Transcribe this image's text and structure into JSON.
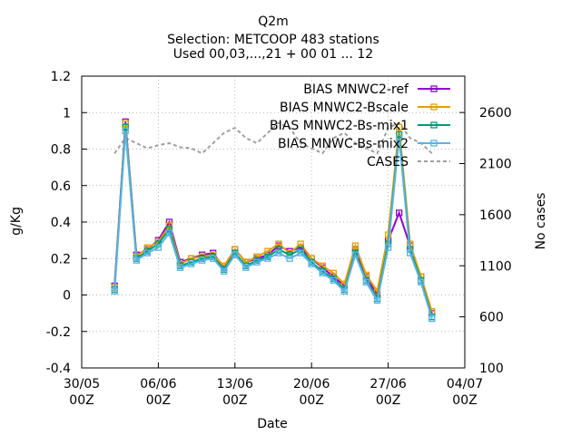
{
  "chart_data": {
    "type": "line",
    "title": "Q2m",
    "subtitle_lines": [
      "Selection: METCOOP    483 stations",
      "Used 00,03,...,21 + 00 01 ... 12"
    ],
    "xlabel": "Date",
    "ylabel": "g/Kg",
    "y2label": "No cases",
    "xlim": [
      "30/05",
      "04/07"
    ],
    "x_ticks": [
      "30/05\n00Z",
      "06/06\n00Z",
      "13/06\n00Z",
      "20/06\n00Z",
      "27/06\n00Z",
      "04/07\n00Z"
    ],
    "ylim": [
      -0.4,
      1.2
    ],
    "y_ticks": [
      "-0.4",
      "-0.2",
      "0",
      "0.2",
      "0.4",
      "0.6",
      "0.8",
      "1",
      "1.2"
    ],
    "y2lim": [
      100,
      2956
    ],
    "y2_ticks": [
      "100",
      "600",
      "1100",
      "1600",
      "2100",
      "2600"
    ],
    "grid": true,
    "legend_position": "top-right",
    "series": [
      {
        "name": "BIAS MNWC2-ref",
        "kind": "bias",
        "color": "#9400d3",
        "x": [
          0.0,
          1.0,
          2.0,
          3.0,
          4.0,
          5.0,
          6.0,
          7.0,
          8.0,
          9.0,
          10.0,
          11.0,
          12.0,
          13.0,
          14.0,
          15.0,
          16.0,
          17.0,
          18.0,
          19.0,
          20.0,
          21.0,
          22.0,
          23.0,
          24.0,
          25.0,
          26.0,
          27.0,
          28.0,
          29.0
        ],
        "y": [
          0.05,
          0.95,
          0.22,
          0.25,
          0.3,
          0.4,
          0.18,
          0.2,
          0.22,
          0.23,
          0.15,
          0.25,
          0.18,
          0.2,
          0.22,
          0.27,
          0.24,
          0.26,
          0.2,
          0.15,
          0.1,
          0.05,
          0.25,
          0.1,
          0.0,
          0.3,
          0.45,
          0.27,
          0.1,
          -0.1
        ]
      },
      {
        "name": "BIAS MNWC2-Bscale",
        "kind": "bias",
        "color": "#e69f00",
        "x": [
          0.0,
          1.0,
          2.0,
          3.0,
          4.0,
          5.0,
          6.0,
          7.0,
          8.0,
          9.0,
          10.0,
          11.0,
          12.0,
          13.0,
          14.0,
          15.0,
          16.0,
          17.0,
          18.0,
          19.0,
          20.0,
          21.0,
          22.0,
          23.0,
          24.0,
          25.0,
          26.0,
          27.0,
          28.0,
          29.0
        ],
        "y": [
          0.04,
          0.94,
          0.21,
          0.26,
          0.29,
          0.38,
          0.17,
          0.2,
          0.21,
          0.22,
          0.16,
          0.25,
          0.18,
          0.21,
          0.24,
          0.28,
          0.23,
          0.28,
          0.2,
          0.16,
          0.12,
          0.06,
          0.27,
          0.11,
          0.02,
          0.33,
          0.92,
          0.28,
          0.1,
          -0.09
        ]
      },
      {
        "name": "BIAS MNWC2-Bs-mix1",
        "kind": "bias",
        "color": "#009e73",
        "x": [
          0.0,
          1.0,
          2.0,
          3.0,
          4.0,
          5.0,
          6.0,
          7.0,
          8.0,
          9.0,
          10.0,
          11.0,
          12.0,
          13.0,
          14.0,
          15.0,
          16.0,
          17.0,
          18.0,
          19.0,
          20.0,
          21.0,
          22.0,
          23.0,
          24.0,
          25.0,
          26.0,
          27.0,
          28.0,
          29.0
        ],
        "y": [
          0.03,
          0.92,
          0.2,
          0.24,
          0.28,
          0.36,
          0.16,
          0.18,
          0.2,
          0.21,
          0.14,
          0.23,
          0.16,
          0.19,
          0.21,
          0.25,
          0.22,
          0.25,
          0.18,
          0.13,
          0.09,
          0.03,
          0.23,
          0.08,
          -0.02,
          0.28,
          0.88,
          0.25,
          0.08,
          -0.12
        ]
      },
      {
        "name": "BIAS MNWC-Bs-mix2",
        "kind": "bias",
        "color": "#56b4e9",
        "x": [
          0.0,
          1.0,
          2.0,
          3.0,
          4.0,
          5.0,
          6.0,
          7.0,
          8.0,
          9.0,
          10.0,
          11.0,
          12.0,
          13.0,
          14.0,
          15.0,
          16.0,
          17.0,
          18.0,
          19.0,
          20.0,
          21.0,
          22.0,
          23.0,
          24.0,
          25.0,
          26.0,
          27.0,
          28.0,
          29.0
        ],
        "y": [
          0.02,
          0.9,
          0.19,
          0.23,
          0.26,
          0.34,
          0.15,
          0.17,
          0.19,
          0.2,
          0.13,
          0.22,
          0.15,
          0.18,
          0.2,
          0.23,
          0.2,
          0.23,
          0.17,
          0.12,
          0.08,
          0.02,
          0.22,
          0.07,
          -0.03,
          0.26,
          0.86,
          0.23,
          0.07,
          -0.13
        ]
      },
      {
        "name": "CASES",
        "kind": "cases",
        "color": "#a0a0a0",
        "axis": "y2",
        "x": [
          0.0,
          1.0,
          2.0,
          3.0,
          4.0,
          5.0,
          6.0,
          7.0,
          8.0,
          9.0,
          10.0,
          11.0,
          12.0,
          13.0,
          14.0,
          15.0,
          16.0,
          17.0,
          18.0,
          19.0,
          20.0,
          21.0,
          22.0,
          23.0,
          24.0,
          25.0,
          26.0,
          27.0,
          28.0,
          29.0
        ],
        "y": [
          2200,
          2350,
          2300,
          2250,
          2280,
          2300,
          2260,
          2250,
          2200,
          2300,
          2400,
          2450,
          2350,
          2300,
          2400,
          2500,
          2450,
          2300,
          2250,
          2200,
          2350,
          2400,
          2300,
          2250,
          2200,
          2450,
          2500,
          2350,
          2300,
          2200
        ]
      }
    ]
  }
}
